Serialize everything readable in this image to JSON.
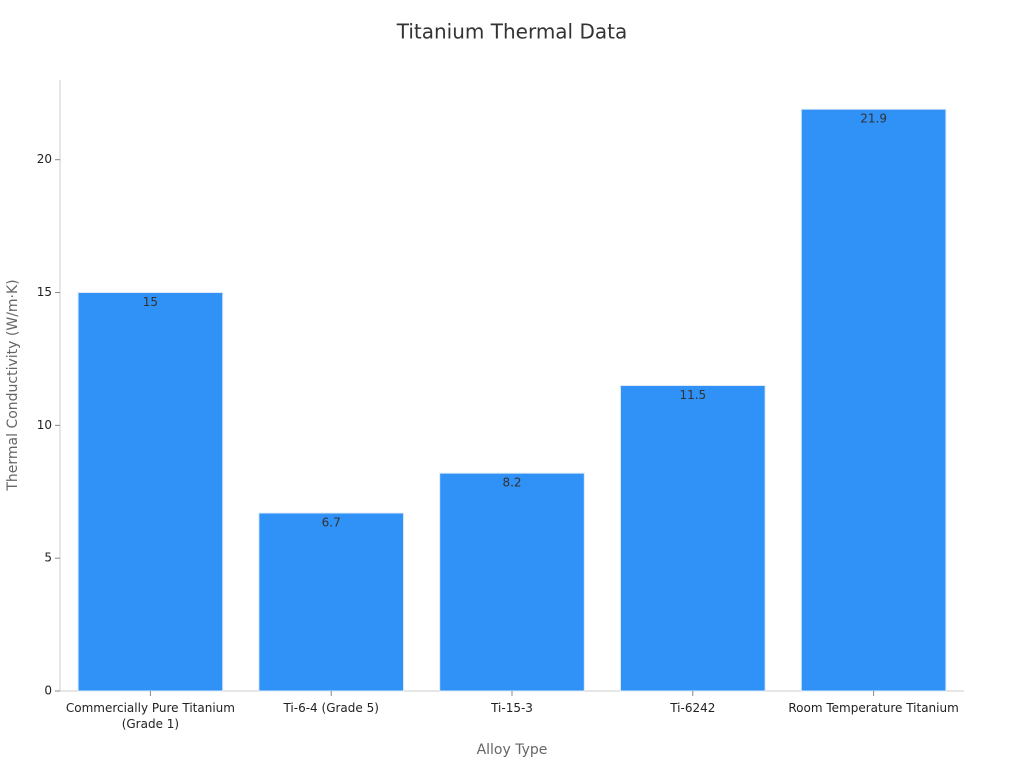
{
  "chart_data": {
    "type": "bar",
    "title": "Titanium Thermal Data",
    "x_label": "Alloy Type",
    "y_label": "Thermal Conductivity (W/m·K)",
    "categories": [
      "Commercially Pure Titanium (Grade 1)",
      "Ti-6-4 (Grade 5)",
      "Ti-15-3",
      "Ti-6242",
      "Room Temperature Titanium"
    ],
    "values": [
      15,
      6.7,
      8.2,
      11.5,
      21.9
    ],
    "color": "#3091f7",
    "ylim": [
      0,
      23
    ],
    "yticks": [
      0,
      5,
      10,
      15,
      20
    ],
    "grid": false
  }
}
